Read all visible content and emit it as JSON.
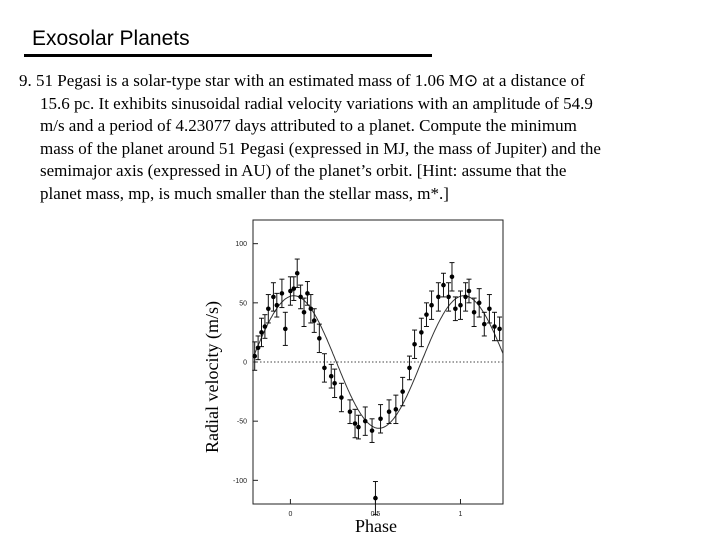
{
  "slide": {
    "title": "Exosolar Planets"
  },
  "problem": {
    "lines": [
      {
        "text": "9. 51 Pegasi is a solar-type star with an estimated mass of 1.06 M⊙ at a distance of"
      },
      {
        "text": "15.6 pc.  It exhibits sinusoidal radial velocity variations with an amplitude of 54.9"
      },
      {
        "text": "m/s and a period of 4.23077 days attributed to a planet.  Compute the minimum"
      },
      {
        "text": "mass of the planet around 51 Pegasi (expressed in MJ, the mass of Jupiter) and the"
      },
      {
        "text": "semimajor axis (expressed in AU) of the planet’s orbit. [Hint: assume that the"
      },
      {
        "text": "planet mass, mp, is much smaller than the stellar mass, m*.]"
      }
    ]
  },
  "chart_data": {
    "type": "scatter",
    "xlabel": "Phase",
    "ylabel": "Radial velocity (m/s)",
    "xlim": [
      -0.22,
      1.25
    ],
    "ylim": [
      -120,
      120
    ],
    "x_ticks": [
      "0",
      "0.5",
      "1"
    ],
    "y_ticks": [
      "100",
      "50",
      "0",
      "-50",
      "-100"
    ],
    "zero_line": "dotted",
    "series": [
      {
        "points": [
          {
            "x": -0.21,
            "y": 5,
            "err": 12
          },
          {
            "x": -0.19,
            "y": 12,
            "err": 10
          },
          {
            "x": -0.17,
            "y": 25,
            "err": 12
          },
          {
            "x": -0.15,
            "y": 30,
            "err": 10
          },
          {
            "x": -0.13,
            "y": 45,
            "err": 12
          },
          {
            "x": -0.1,
            "y": 55,
            "err": 12
          },
          {
            "x": -0.08,
            "y": 48,
            "err": 10
          },
          {
            "x": -0.05,
            "y": 58,
            "err": 12
          },
          {
            "x": -0.03,
            "y": 28,
            "err": 14
          },
          {
            "x": 0.0,
            "y": 60,
            "err": 12
          },
          {
            "x": 0.02,
            "y": 62,
            "err": 10
          },
          {
            "x": 0.04,
            "y": 75,
            "err": 12
          },
          {
            "x": 0.06,
            "y": 55,
            "err": 10
          },
          {
            "x": 0.08,
            "y": 42,
            "err": 12
          },
          {
            "x": 0.1,
            "y": 58,
            "err": 10
          },
          {
            "x": 0.12,
            "y": 45,
            "err": 12
          },
          {
            "x": 0.14,
            "y": 35,
            "err": 10
          },
          {
            "x": 0.17,
            "y": 20,
            "err": 12
          },
          {
            "x": 0.2,
            "y": -5,
            "err": 12
          },
          {
            "x": 0.24,
            "y": -12,
            "err": 10
          },
          {
            "x": 0.26,
            "y": -18,
            "err": 12
          },
          {
            "x": 0.3,
            "y": -30,
            "err": 12
          },
          {
            "x": 0.35,
            "y": -42,
            "err": 10
          },
          {
            "x": 0.38,
            "y": -52,
            "err": 12
          },
          {
            "x": 0.4,
            "y": -55,
            "err": 10
          },
          {
            "x": 0.44,
            "y": -50,
            "err": 12
          },
          {
            "x": 0.48,
            "y": -58,
            "err": 10
          },
          {
            "x": 0.5,
            "y": -115,
            "err": 14
          },
          {
            "x": 0.53,
            "y": -48,
            "err": 12
          },
          {
            "x": 0.58,
            "y": -42,
            "err": 10
          },
          {
            "x": 0.62,
            "y": -40,
            "err": 12
          },
          {
            "x": 0.66,
            "y": -25,
            "err": 12
          },
          {
            "x": 0.7,
            "y": -5,
            "err": 10
          },
          {
            "x": 0.73,
            "y": 15,
            "err": 12
          },
          {
            "x": 0.77,
            "y": 25,
            "err": 12
          },
          {
            "x": 0.8,
            "y": 40,
            "err": 10
          },
          {
            "x": 0.83,
            "y": 48,
            "err": 12
          },
          {
            "x": 0.87,
            "y": 55,
            "err": 12
          },
          {
            "x": 0.9,
            "y": 65,
            "err": 10
          },
          {
            "x": 0.93,
            "y": 55,
            "err": 12
          },
          {
            "x": 0.95,
            "y": 72,
            "err": 12
          },
          {
            "x": 0.97,
            "y": 45,
            "err": 10
          },
          {
            "x": 1.0,
            "y": 48,
            "err": 12
          },
          {
            "x": 1.03,
            "y": 55,
            "err": 12
          },
          {
            "x": 1.05,
            "y": 60,
            "err": 10
          },
          {
            "x": 1.08,
            "y": 42,
            "err": 12
          },
          {
            "x": 1.11,
            "y": 50,
            "err": 12
          },
          {
            "x": 1.14,
            "y": 32,
            "err": 10
          },
          {
            "x": 1.17,
            "y": 45,
            "err": 12
          },
          {
            "x": 1.2,
            "y": 30,
            "err": 12
          },
          {
            "x": 1.23,
            "y": 28,
            "err": 10
          }
        ]
      }
    ],
    "fit": {
      "model": "sinusoid",
      "amplitude": 56,
      "period": 1,
      "peak_phase": 0.02
    }
  }
}
